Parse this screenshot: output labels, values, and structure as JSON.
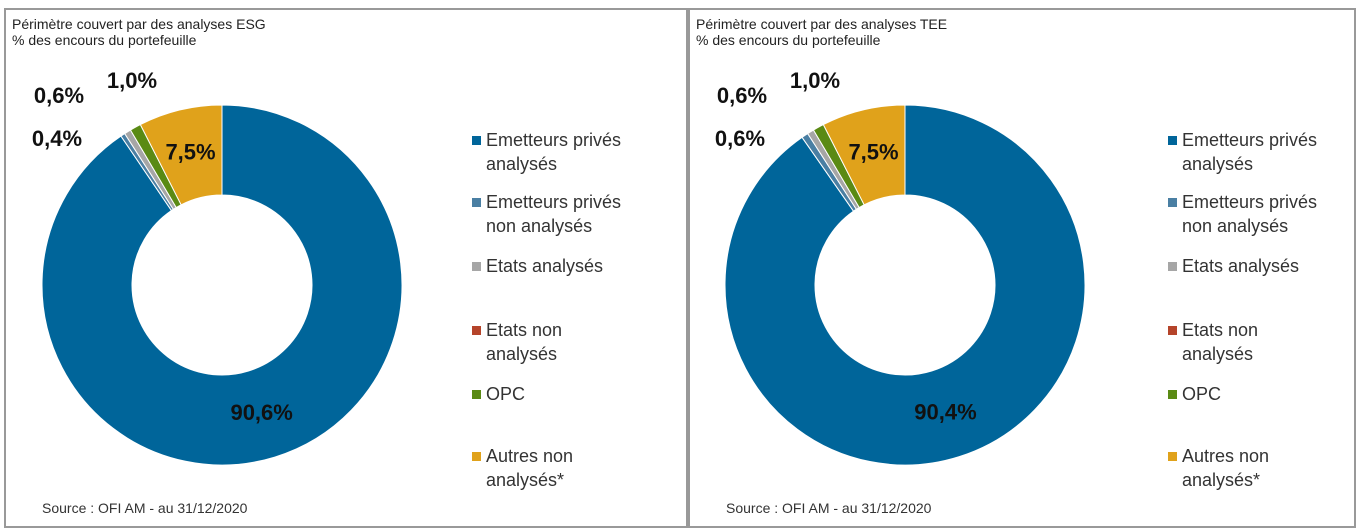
{
  "chart_data": [
    {
      "type": "donut",
      "title": "Périmètre couvert par des analyses ESG",
      "subtitle": "% des encours du portefeuille",
      "categories": [
        "Emetteurs privés analysés",
        "Emetteurs privés non analysés",
        "Etats analysés",
        "Etats non analysés",
        "OPC",
        "Autres non analysés*"
      ],
      "values": [
        90.6,
        0.4,
        0.6,
        0,
        1.0,
        7.5
      ],
      "value_labels": [
        "90,6%",
        "0,4%",
        "0,6%",
        null,
        "1,0%",
        "7,5%"
      ],
      "colors": [
        "#00659a",
        "#4a7fa3",
        "#a6a6a6",
        "#b5442a",
        "#5a8a14",
        "#e0a21b"
      ],
      "source": "Source : OFI AM - au 31/12/2020"
    },
    {
      "type": "donut",
      "title": "Périmètre couvert par des analyses TEE",
      "subtitle": "% des encours du portefeuille",
      "categories": [
        "Emetteurs privés analysés",
        "Emetteurs privés non analysés",
        "Etats analysés",
        "Etats non analysés",
        "OPC",
        "Autres non analysés*"
      ],
      "values": [
        90.4,
        0.6,
        0.6,
        0,
        1.0,
        7.5
      ],
      "value_labels": [
        "90,4%",
        "0,6%",
        "0,6%",
        null,
        "1,0%",
        "7,5%"
      ],
      "colors": [
        "#00659a",
        "#4a7fa3",
        "#a6a6a6",
        "#b5442a",
        "#5a8a14",
        "#e0a21b"
      ],
      "source": "Source : OFI AM - au 31/12/2020"
    }
  ]
}
